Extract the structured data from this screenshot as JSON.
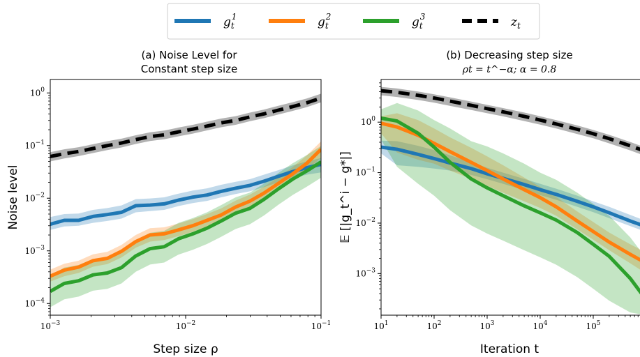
{
  "legend": {
    "entries": [
      {
        "label": "g_t^1",
        "base": "g",
        "sub": "t",
        "sup": "1",
        "color": "#1f77b4",
        "dashed": false
      },
      {
        "label": "g_t^2",
        "base": "g",
        "sub": "t",
        "sup": "2",
        "color": "#ff7f0e",
        "dashed": false
      },
      {
        "label": "g_t^3",
        "base": "g",
        "sub": "t",
        "sup": "3",
        "color": "#2ca02c",
        "dashed": false
      },
      {
        "label": "z_t",
        "base": "z",
        "sub": "t",
        "sup": "",
        "color": "#000000",
        "dashed": true
      }
    ],
    "placement": "top-center"
  },
  "chart_data": [
    {
      "type": "line",
      "panel": "a",
      "title_line1": "(a) Noise Level for",
      "title_line2": "Constant step size",
      "xlabel": "Step size ρ",
      "ylabel": "Noise level",
      "xscale": "log",
      "yscale": "log",
      "xlim": [
        0.001,
        0.1
      ],
      "ylim": [
        6e-05,
        1.8
      ],
      "xticks": [
        {
          "value": 0.001,
          "base": "10",
          "exp": "−3"
        },
        {
          "value": 0.01,
          "base": "10",
          "exp": "−2"
        },
        {
          "value": 0.1,
          "base": "10",
          "exp": "−1"
        }
      ],
      "yticks": [
        {
          "value": 0.0001,
          "base": "10",
          "exp": "−4"
        },
        {
          "value": 0.001,
          "base": "10",
          "exp": "−3"
        },
        {
          "value": 0.01,
          "base": "10",
          "exp": "−2"
        },
        {
          "value": 0.1,
          "base": "10",
          "exp": "−1"
        },
        {
          "value": 1,
          "base": "10",
          "exp": "0"
        }
      ],
      "grid": false,
      "x": [
        0.001,
        0.00127,
        0.00162,
        0.00207,
        0.00264,
        0.00336,
        0.00428,
        0.00546,
        0.00695,
        0.00886,
        0.0113,
        0.0144,
        0.0183,
        0.0234,
        0.0298,
        0.0379,
        0.0483,
        0.0616,
        0.0785,
        0.1
      ],
      "series": [
        {
          "name": "g_t^1",
          "color": "#1f77b4",
          "dashed": false,
          "values": [
            0.0032,
            0.0038,
            0.0038,
            0.0045,
            0.0049,
            0.0054,
            0.0072,
            0.0074,
            0.0078,
            0.0092,
            0.0105,
            0.0115,
            0.0135,
            0.0155,
            0.0175,
            0.021,
            0.026,
            0.032,
            0.038,
            0.044
          ],
          "lower": [
            0.0025,
            0.0029,
            0.003,
            0.0034,
            0.0037,
            0.0041,
            0.0054,
            0.0057,
            0.006,
            0.0071,
            0.0081,
            0.0089,
            0.0104,
            0.012,
            0.0135,
            0.0162,
            0.02,
            0.024,
            0.028,
            0.031
          ],
          "upper": [
            0.0044,
            0.005,
            0.0051,
            0.006,
            0.0065,
            0.0073,
            0.0096,
            0.0099,
            0.0104,
            0.0122,
            0.014,
            0.0154,
            0.018,
            0.0205,
            0.023,
            0.028,
            0.034,
            0.042,
            0.05,
            0.058
          ]
        },
        {
          "name": "g_t^2",
          "color": "#ff7f0e",
          "dashed": false,
          "values": [
            0.00033,
            0.00043,
            0.00049,
            0.00065,
            0.00072,
            0.00098,
            0.0015,
            0.002,
            0.0021,
            0.0025,
            0.003,
            0.0038,
            0.0048,
            0.0068,
            0.0088,
            0.0125,
            0.019,
            0.029,
            0.046,
            0.085
          ],
          "lower": [
            0.00026,
            0.00033,
            0.00038,
            0.0005,
            0.00056,
            0.00075,
            0.00115,
            0.0015,
            0.0016,
            0.0019,
            0.0023,
            0.0029,
            0.0037,
            0.0052,
            0.0067,
            0.0095,
            0.0145,
            0.022,
            0.034,
            0.058
          ],
          "upper": [
            0.00044,
            0.00057,
            0.00065,
            0.00086,
            0.00096,
            0.0013,
            0.002,
            0.0027,
            0.0028,
            0.0033,
            0.004,
            0.005,
            0.0064,
            0.009,
            0.0117,
            0.0165,
            0.025,
            0.039,
            0.065,
            0.12
          ]
        },
        {
          "name": "g_t^3",
          "color": "#2ca02c",
          "dashed": false,
          "values": [
            0.00017,
            0.00024,
            0.00027,
            0.00035,
            0.00038,
            0.00048,
            0.0008,
            0.0011,
            0.0012,
            0.0017,
            0.0021,
            0.0027,
            0.0037,
            0.0052,
            0.0064,
            0.0095,
            0.015,
            0.023,
            0.033,
            0.049
          ],
          "lower": [
            8.5e-05,
            0.00012,
            0.000135,
            0.000175,
            0.00019,
            0.00024,
            0.0004,
            0.00055,
            0.0006,
            0.00085,
            0.00105,
            0.00135,
            0.00185,
            0.0026,
            0.0032,
            0.0047,
            0.0075,
            0.0115,
            0.0165,
            0.0245
          ],
          "upper": [
            0.00034,
            0.00048,
            0.00054,
            0.0007,
            0.00076,
            0.00096,
            0.0016,
            0.0022,
            0.0024,
            0.0034,
            0.0042,
            0.0054,
            0.0074,
            0.0104,
            0.0128,
            0.019,
            0.03,
            0.046,
            0.066,
            0.098
          ]
        },
        {
          "name": "z_t",
          "color": "#000000",
          "dashed": true,
          "values": [
            0.062,
            0.07,
            0.077,
            0.088,
            0.1,
            0.112,
            0.13,
            0.148,
            0.16,
            0.182,
            0.205,
            0.235,
            0.27,
            0.3,
            0.35,
            0.4,
            0.47,
            0.55,
            0.65,
            0.8
          ],
          "lower": [
            0.05,
            0.057,
            0.063,
            0.072,
            0.082,
            0.092,
            0.107,
            0.122,
            0.132,
            0.15,
            0.169,
            0.194,
            0.223,
            0.248,
            0.29,
            0.331,
            0.389,
            0.455,
            0.538,
            0.662
          ],
          "upper": [
            0.075,
            0.085,
            0.093,
            0.106,
            0.121,
            0.135,
            0.157,
            0.179,
            0.193,
            0.22,
            0.248,
            0.284,
            0.326,
            0.362,
            0.423,
            0.484,
            0.568,
            0.665,
            0.786,
            0.967
          ]
        }
      ]
    },
    {
      "type": "line",
      "panel": "b",
      "title_line1": "(b) Decreasing step size",
      "title_line2": "ρt = t^−α; α = 0.8",
      "xlabel": "Iteration t",
      "ylabel": "𝔼 [|g_t^i − g*|]",
      "xscale": "log",
      "yscale": "log",
      "xlim": [
        10,
        1000000
      ],
      "ylim": [
        0.00015,
        7
      ],
      "xticks": [
        {
          "value": 10,
          "base": "10",
          "exp": "1"
        },
        {
          "value": 100,
          "base": "10",
          "exp": "2"
        },
        {
          "value": 1000,
          "base": "10",
          "exp": "3"
        },
        {
          "value": 10000,
          "base": "10",
          "exp": "4"
        },
        {
          "value": 100000,
          "base": "10",
          "exp": "5"
        }
      ],
      "yticks": [
        {
          "value": 0.001,
          "base": "10",
          "exp": "−3"
        },
        {
          "value": 0.01,
          "base": "10",
          "exp": "−2"
        },
        {
          "value": 0.1,
          "base": "10",
          "exp": "−1"
        },
        {
          "value": 1,
          "base": "10",
          "exp": "0"
        }
      ],
      "grid": false,
      "x": [
        10,
        20,
        50,
        100,
        200,
        500,
        1000,
        2000,
        5000,
        10000,
        20000,
        50000,
        100000,
        200000,
        500000,
        1000000
      ],
      "series": [
        {
          "name": "g_t^1",
          "color": "#1f77b4",
          "dashed": false,
          "values": [
            0.32,
            0.29,
            0.23,
            0.19,
            0.155,
            0.12,
            0.095,
            0.077,
            0.058,
            0.046,
            0.037,
            0.027,
            0.021,
            0.016,
            0.011,
            0.0085
          ],
          "lower": [
            0.24,
            0.14,
            0.13,
            0.12,
            0.11,
            0.09,
            0.074,
            0.06,
            0.045,
            0.036,
            0.029,
            0.021,
            0.0165,
            0.0125,
            0.0087,
            0.0067
          ],
          "upper": [
            0.43,
            0.42,
            0.34,
            0.28,
            0.22,
            0.16,
            0.125,
            0.1,
            0.075,
            0.06,
            0.048,
            0.035,
            0.027,
            0.021,
            0.0145,
            0.011
          ]
        },
        {
          "name": "g_t^2",
          "color": "#ff7f0e",
          "dashed": false,
          "values": [
            0.95,
            0.8,
            0.55,
            0.38,
            0.26,
            0.16,
            0.11,
            0.075,
            0.046,
            0.032,
            0.021,
            0.011,
            0.0068,
            0.0042,
            0.0024,
            0.0016
          ],
          "lower": [
            0.6,
            0.25,
            0.18,
            0.15,
            0.11,
            0.075,
            0.055,
            0.04,
            0.027,
            0.02,
            0.014,
            0.0075,
            0.0047,
            0.0029,
            0.0016,
            0.001
          ],
          "upper": [
            1.3,
            1.5,
            1.1,
            0.75,
            0.5,
            0.31,
            0.21,
            0.14,
            0.08,
            0.052,
            0.033,
            0.017,
            0.0105,
            0.0065,
            0.0038,
            0.0026
          ]
        },
        {
          "name": "g_t^3",
          "color": "#2ca02c",
          "dashed": false,
          "values": [
            1.2,
            1.05,
            0.6,
            0.32,
            0.16,
            0.075,
            0.05,
            0.035,
            0.022,
            0.016,
            0.0115,
            0.0065,
            0.0038,
            0.0022,
            0.0008,
            0.0003
          ],
          "lower": [
            0.45,
            0.13,
            0.06,
            0.035,
            0.018,
            0.009,
            0.0062,
            0.0045,
            0.0029,
            0.0021,
            0.0015,
            0.00085,
            0.0005,
            0.00029,
            0.00017,
            0.00015
          ],
          "upper": [
            1.8,
            2.4,
            1.7,
            1.1,
            0.75,
            0.42,
            0.33,
            0.24,
            0.15,
            0.1,
            0.072,
            0.04,
            0.024,
            0.014,
            0.0052,
            0.002
          ]
        },
        {
          "name": "z_t",
          "color": "#000000",
          "dashed": true,
          "values": [
            4.2,
            3.9,
            3.4,
            3.0,
            2.6,
            2.15,
            1.85,
            1.6,
            1.3,
            1.1,
            0.92,
            0.72,
            0.59,
            0.47,
            0.34,
            0.26
          ],
          "lower": [
            3.4,
            3.15,
            2.75,
            2.43,
            2.1,
            1.74,
            1.5,
            1.3,
            1.05,
            0.89,
            0.75,
            0.58,
            0.48,
            0.38,
            0.275,
            0.21
          ],
          "upper": [
            5.0,
            4.65,
            4.05,
            3.57,
            3.1,
            2.56,
            2.2,
            1.9,
            1.55,
            1.31,
            1.1,
            0.86,
            0.7,
            0.56,
            0.405,
            0.31
          ]
        }
      ]
    }
  ]
}
